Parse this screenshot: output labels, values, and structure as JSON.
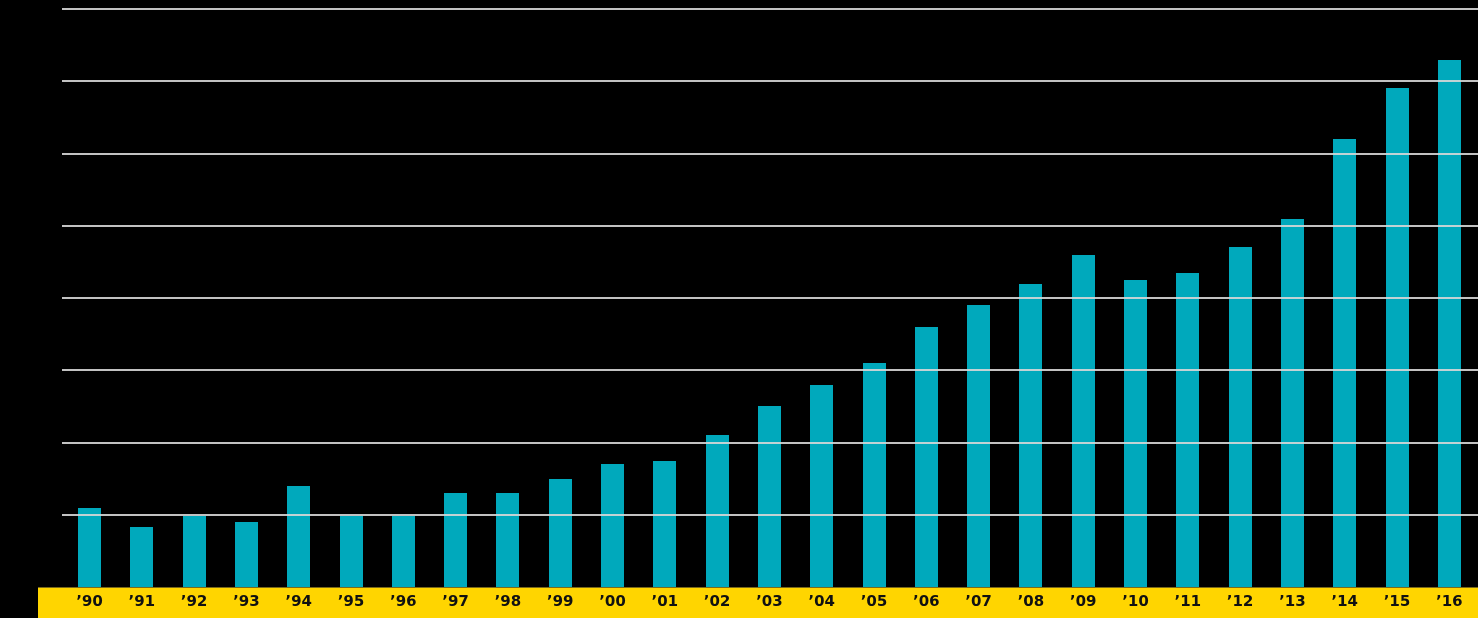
{
  "chart_data": {
    "type": "bar",
    "title": "",
    "xlabel": "",
    "ylabel": "",
    "categories": [
      "’90",
      "’91",
      "’92",
      "’93",
      "’94",
      "’95",
      "’96",
      "’97",
      "’98",
      "’99",
      "’00",
      "’01",
      "’02",
      "’03",
      "’04",
      "’05",
      "’06",
      "’07",
      "’08",
      "’09",
      "’10",
      "’11",
      "’12",
      "’13",
      "’14",
      "’15",
      "’16"
    ],
    "values": [
      1.1,
      0.83,
      0.98,
      0.9,
      1.4,
      0.98,
      0.98,
      1.3,
      1.3,
      1.5,
      1.7,
      1.74,
      2.1,
      2.5,
      2.8,
      3.1,
      3.6,
      3.9,
      4.2,
      4.6,
      4.25,
      4.35,
      4.7,
      5.1,
      6.2,
      6.9,
      7.3
    ],
    "ylim": [
      0,
      8
    ],
    "yticks": [
      1,
      2,
      3,
      4,
      5,
      6,
      7,
      8
    ],
    "ytick_labels_visible": false,
    "grid": true,
    "legend": null,
    "colors": {
      "bar": "#00a9bc",
      "background": "#000000",
      "gridline": "#d7d7d7",
      "axis_band": "#ffd500",
      "tick_label": "#111111"
    }
  }
}
